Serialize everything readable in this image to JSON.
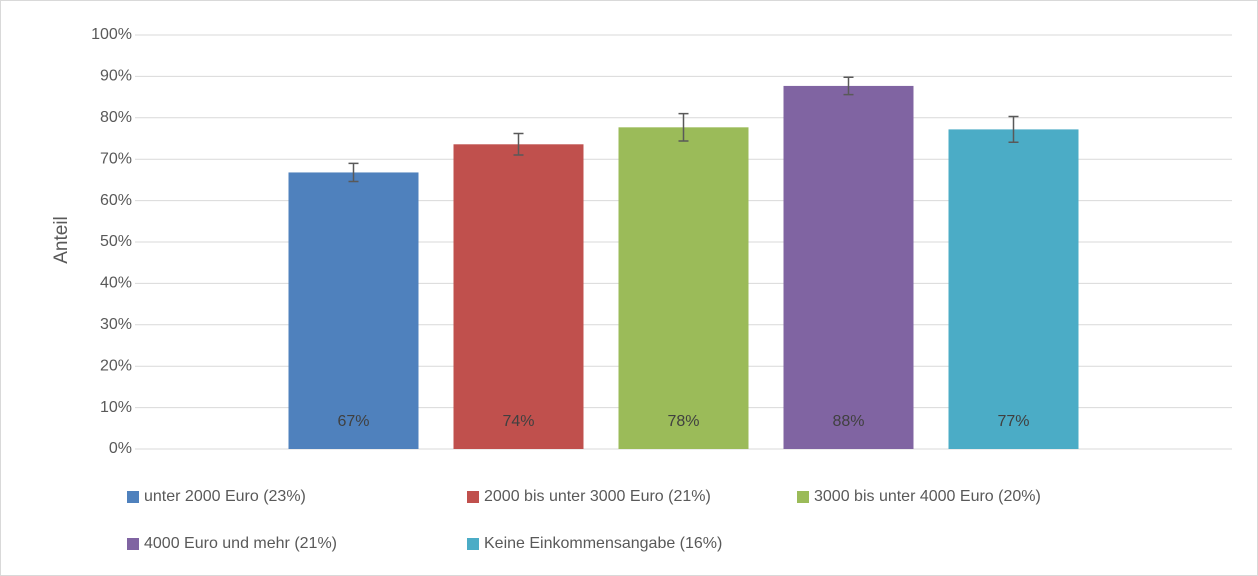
{
  "chart_data": {
    "type": "bar",
    "y_label": "Anteil",
    "categories": [
      null
    ],
    "series": [
      {
        "name": "unter 2000 Euro (23%)",
        "color": "#4f81bd",
        "values": [
          66.8
        ],
        "errors": [
          2.2
        ],
        "value_labels": [
          "67%"
        ]
      },
      {
        "name": "2000 bis unter 3000 Euro (21%)",
        "color": "#c0504d",
        "values": [
          73.6
        ],
        "errors": [
          2.6
        ],
        "value_labels": [
          "74%"
        ]
      },
      {
        "name": "3000 bis unter 4000 Euro (20%)",
        "color": "#9bbb59",
        "values": [
          77.7
        ],
        "errors": [
          3.3
        ],
        "value_labels": [
          "78%"
        ]
      },
      {
        "name": "4000 Euro und mehr (21%)",
        "color": "#8064a2",
        "values": [
          87.7
        ],
        "errors": [
          2.1
        ],
        "value_labels": [
          "88%"
        ]
      },
      {
        "name": "Keine Einkommensangabe (16%)",
        "color": "#4bacc6",
        "values": [
          77.2
        ],
        "errors": [
          3.1
        ],
        "value_labels": [
          "77%"
        ]
      }
    ],
    "ylim": [
      0,
      100
    ],
    "yticks": [
      {
        "value": 0,
        "label": "0%"
      },
      {
        "value": 10,
        "label": "10%"
      },
      {
        "value": 20,
        "label": "20%"
      },
      {
        "value": 30,
        "label": "30%"
      },
      {
        "value": 40,
        "label": "40%"
      },
      {
        "value": 50,
        "label": "50%"
      },
      {
        "value": 60,
        "label": "60%"
      },
      {
        "value": 70,
        "label": "70%"
      },
      {
        "value": 80,
        "label": "80%"
      },
      {
        "value": 90,
        "label": "90%"
      },
      {
        "value": 100,
        "label": "100%"
      }
    ],
    "grid": true,
    "legend": "bottom"
  }
}
